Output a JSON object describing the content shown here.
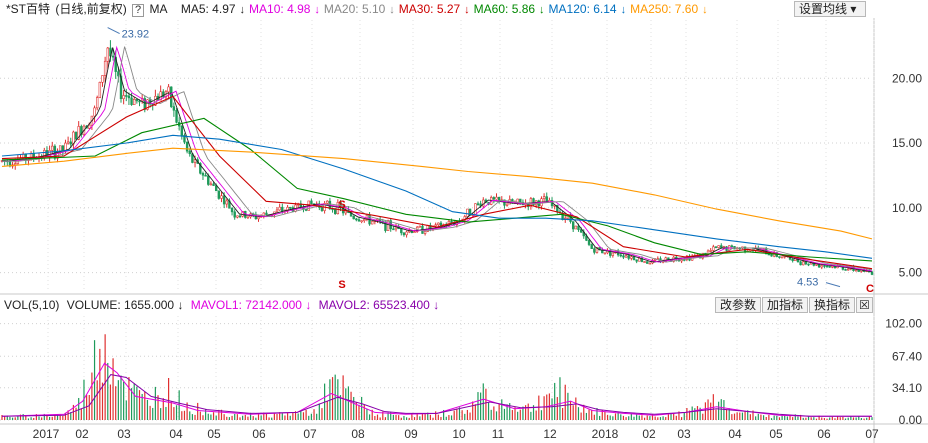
{
  "legend": {
    "name": "*ST百特",
    "period": "(日线,前复权)",
    "type_mark": "?",
    "indicator": "MA",
    "items": [
      {
        "label": "MA5: 4.97",
        "arrow": "↓",
        "color": "#222222"
      },
      {
        "label": "MA10: 4.98",
        "arrow": "↓",
        "color": "#e000e0"
      },
      {
        "label": "MA20: 5.10",
        "arrow": "↓",
        "color": "#888888"
      },
      {
        "label": "MA30: 5.27",
        "arrow": "↓",
        "color": "#cc0000"
      },
      {
        "label": "MA60: 5.86",
        "arrow": "↓",
        "color": "#008800"
      },
      {
        "label": "MA120: 6.14",
        "arrow": "↓",
        "color": "#0070c0"
      },
      {
        "label": "MA250: 7.60",
        "arrow": "↓",
        "color": "#ff9900"
      }
    ],
    "settings_button": "设置均线 ▾"
  },
  "volume_legend": {
    "indicator": "VOL(5,10)",
    "volume": "VOLUME: 1655.000",
    "mavol1": "MAVOL1: 72142.000",
    "mavol2": "MAVOL2: 65523.400",
    "arrow": "↓",
    "btn_params": "改参数",
    "btn_add": "加指标",
    "btn_switch": "换指标",
    "btn_close": "☒"
  },
  "chart_data": [
    {
      "type": "candlestick",
      "title": "*ST百特",
      "ylim": [
        3.5,
        24.5
      ],
      "yticks": [
        "20.00",
        "15.00",
        "10.00",
        "5.00"
      ],
      "ytick_values": [
        20,
        15,
        10,
        5
      ],
      "x_ticks": [
        "2017",
        "02",
        "03",
        "04",
        "05",
        "06",
        "07",
        "08",
        "09",
        "10",
        "11",
        "12",
        "2018",
        "02",
        "03",
        "04",
        "05",
        "06",
        "07"
      ],
      "annotations": [
        {
          "text": "23.92",
          "value": 23.92,
          "kind": "high"
        },
        {
          "text": "4.53",
          "value": 4.53,
          "kind": "low"
        },
        {
          "text": "S",
          "kind": "marker"
        },
        {
          "text": "S",
          "kind": "marker"
        },
        {
          "text": "C",
          "kind": "marker"
        }
      ],
      "price_path": [
        [
          0,
          13.6
        ],
        [
          1,
          13.9
        ],
        [
          2,
          14.5
        ],
        [
          3,
          17.5
        ],
        [
          3.4,
          22.5
        ],
        [
          3.8,
          19.0
        ],
        [
          4.5,
          18.0
        ],
        [
          5.3,
          19.0
        ],
        [
          6.0,
          14.0
        ],
        [
          6.5,
          12.5
        ],
        [
          7.0,
          11.0
        ],
        [
          7.5,
          9.5
        ],
        [
          8.2,
          9.3
        ],
        [
          9.0,
          9.8
        ],
        [
          10.0,
          10.3
        ],
        [
          10.8,
          10.0
        ],
        [
          11.3,
          9.3
        ],
        [
          12.0,
          8.9
        ],
        [
          13.0,
          8.2
        ],
        [
          14.0,
          8.5
        ],
        [
          14.7,
          9.0
        ],
        [
          15.5,
          10.6
        ],
        [
          16.5,
          10.3
        ],
        [
          17.5,
          10.5
        ],
        [
          18.3,
          9.0
        ],
        [
          19.0,
          6.8
        ],
        [
          20.0,
          6.4
        ],
        [
          20.8,
          5.8
        ],
        [
          21.6,
          6.1
        ],
        [
          22.5,
          6.3
        ],
        [
          23.0,
          6.9
        ],
        [
          24.0,
          6.9
        ],
        [
          25.0,
          6.3
        ],
        [
          26.0,
          5.7
        ],
        [
          27.0,
          5.4
        ],
        [
          28.0,
          5.0
        ]
      ],
      "series": [
        {
          "name": "MA30",
          "color": "#cc0000",
          "values": [
            [
              0,
              13.8
            ],
            [
              2,
              14.0
            ],
            [
              4,
              17.0
            ],
            [
              5.5,
              18.6
            ],
            [
              7,
              14.0
            ],
            [
              8.5,
              10.5
            ],
            [
              10,
              10.2
            ],
            [
              12,
              9.4
            ],
            [
              14,
              8.5
            ],
            [
              15.5,
              9.5
            ],
            [
              17,
              10.2
            ],
            [
              18.5,
              9.3
            ],
            [
              20,
              7.0
            ],
            [
              22,
              6.2
            ],
            [
              24,
              6.8
            ],
            [
              26,
              6.0
            ],
            [
              28,
              5.3
            ]
          ]
        },
        {
          "name": "MA60",
          "color": "#008800",
          "values": [
            [
              0,
              13.7
            ],
            [
              3,
              14.0
            ],
            [
              4.5,
              15.8
            ],
            [
              6.5,
              16.9
            ],
            [
              8,
              14.5
            ],
            [
              9.5,
              11.5
            ],
            [
              11,
              10.7
            ],
            [
              13,
              9.5
            ],
            [
              15,
              8.9
            ],
            [
              16.5,
              9.2
            ],
            [
              18,
              9.5
            ],
            [
              19.5,
              8.6
            ],
            [
              21,
              7.3
            ],
            [
              22.5,
              6.4
            ],
            [
              24,
              6.6
            ],
            [
              26,
              6.2
            ],
            [
              28,
              5.9
            ]
          ]
        },
        {
          "name": "MA120",
          "color": "#0070c0",
          "values": [
            [
              0,
              14.0
            ],
            [
              2,
              14.4
            ],
            [
              4,
              15.0
            ],
            [
              5.5,
              15.6
            ],
            [
              7,
              15.3
            ],
            [
              9,
              14.5
            ],
            [
              11,
              13.0
            ],
            [
              13,
              11.3
            ],
            [
              14.5,
              9.7
            ],
            [
              16,
              9.2
            ],
            [
              17.5,
              9.2
            ],
            [
              19,
              9.0
            ],
            [
              21,
              8.3
            ],
            [
              23,
              7.6
            ],
            [
              25,
              7.0
            ],
            [
              26.5,
              6.6
            ],
            [
              28,
              6.1
            ]
          ]
        },
        {
          "name": "MA250",
          "color": "#ff9900",
          "values": [
            [
              0,
              13.2
            ],
            [
              2,
              13.6
            ],
            [
              4,
              14.2
            ],
            [
              5.5,
              14.6
            ],
            [
              8,
              14.3
            ],
            [
              11,
              13.8
            ],
            [
              13.5,
              13.2
            ],
            [
              15,
              12.8
            ],
            [
              17,
              12.4
            ],
            [
              19,
              11.9
            ],
            [
              21,
              11.0
            ],
            [
              23,
              9.9
            ],
            [
              25,
              9.0
            ],
            [
              27,
              8.2
            ],
            [
              28,
              7.6
            ]
          ]
        }
      ]
    },
    {
      "type": "bar",
      "title": "VOL(5,10)",
      "ylim": [
        0,
        110
      ],
      "yticks": [
        "102.00",
        "67.40",
        "34.10",
        "0.00"
      ],
      "ytick_values": [
        102,
        67.4,
        34.1,
        0
      ],
      "series": [
        {
          "name": "MAVOL1",
          "color": "#e000e0",
          "values": [
            [
              0,
              4
            ],
            [
              2,
              6
            ],
            [
              2.6,
              20
            ],
            [
              3.3,
              60
            ],
            [
              3.7,
              50
            ],
            [
              4.3,
              25
            ],
            [
              5.5,
              18
            ],
            [
              6.3,
              10
            ],
            [
              8,
              6
            ],
            [
              9.5,
              8
            ],
            [
              10.6,
              28
            ],
            [
              11.3,
              18
            ],
            [
              12,
              8
            ],
            [
              13,
              6
            ],
            [
              14,
              7
            ],
            [
              15.5,
              22
            ],
            [
              16.5,
              12
            ],
            [
              17.5,
              14
            ],
            [
              18.3,
              20
            ],
            [
              19,
              10
            ],
            [
              20,
              7
            ],
            [
              21,
              5
            ],
            [
              22,
              8
            ],
            [
              23,
              14
            ],
            [
              24,
              9
            ],
            [
              25,
              5
            ],
            [
              26,
              4
            ],
            [
              27,
              4
            ],
            [
              28,
              4
            ]
          ]
        },
        {
          "name": "MAVOL2",
          "color": "#8800aa",
          "values": [
            [
              0,
              4
            ],
            [
              2,
              5
            ],
            [
              2.8,
              15
            ],
            [
              3.5,
              48
            ],
            [
              4,
              45
            ],
            [
              4.8,
              25
            ],
            [
              5.8,
              17
            ],
            [
              6.6,
              11
            ],
            [
              8,
              7
            ],
            [
              9.5,
              8
            ],
            [
              10.8,
              24
            ],
            [
              11.6,
              17
            ],
            [
              12.3,
              9
            ],
            [
              13,
              7
            ],
            [
              14,
              7
            ],
            [
              15.7,
              19
            ],
            [
              16.7,
              13
            ],
            [
              17.7,
              14
            ],
            [
              18.5,
              17
            ],
            [
              19.2,
              11
            ],
            [
              20,
              8
            ],
            [
              21,
              6
            ],
            [
              22,
              8
            ],
            [
              23,
              12
            ],
            [
              24,
              9
            ],
            [
              25,
              6
            ],
            [
              26,
              4
            ],
            [
              27,
              4
            ],
            [
              28,
              4
            ]
          ]
        }
      ],
      "volume_path": [
        [
          0,
          4
        ],
        [
          1,
          5
        ],
        [
          2,
          6
        ],
        [
          2.5,
          20
        ],
        [
          3,
          70
        ],
        [
          3.3,
          104
        ],
        [
          3.6,
          70
        ],
        [
          4,
          40
        ],
        [
          4.5,
          25
        ],
        [
          5,
          30
        ],
        [
          5.3,
          35
        ],
        [
          6,
          15
        ],
        [
          7,
          10
        ],
        [
          8,
          6
        ],
        [
          9,
          7
        ],
        [
          10,
          10
        ],
        [
          10.5,
          40
        ],
        [
          11,
          35
        ],
        [
          11.5,
          20
        ],
        [
          12,
          8
        ],
        [
          13,
          5
        ],
        [
          14,
          7
        ],
        [
          15,
          12
        ],
        [
          15.5,
          35
        ],
        [
          16,
          20
        ],
        [
          17,
          14
        ],
        [
          17.5,
          30
        ],
        [
          18,
          35
        ],
        [
          18.5,
          20
        ],
        [
          19,
          10
        ],
        [
          20,
          6
        ],
        [
          21,
          5
        ],
        [
          22,
          9
        ],
        [
          22.5,
          15
        ],
        [
          23,
          22
        ],
        [
          24,
          8
        ],
        [
          25,
          5
        ],
        [
          26,
          4
        ],
        [
          27,
          3
        ],
        [
          28,
          3
        ]
      ]
    }
  ]
}
